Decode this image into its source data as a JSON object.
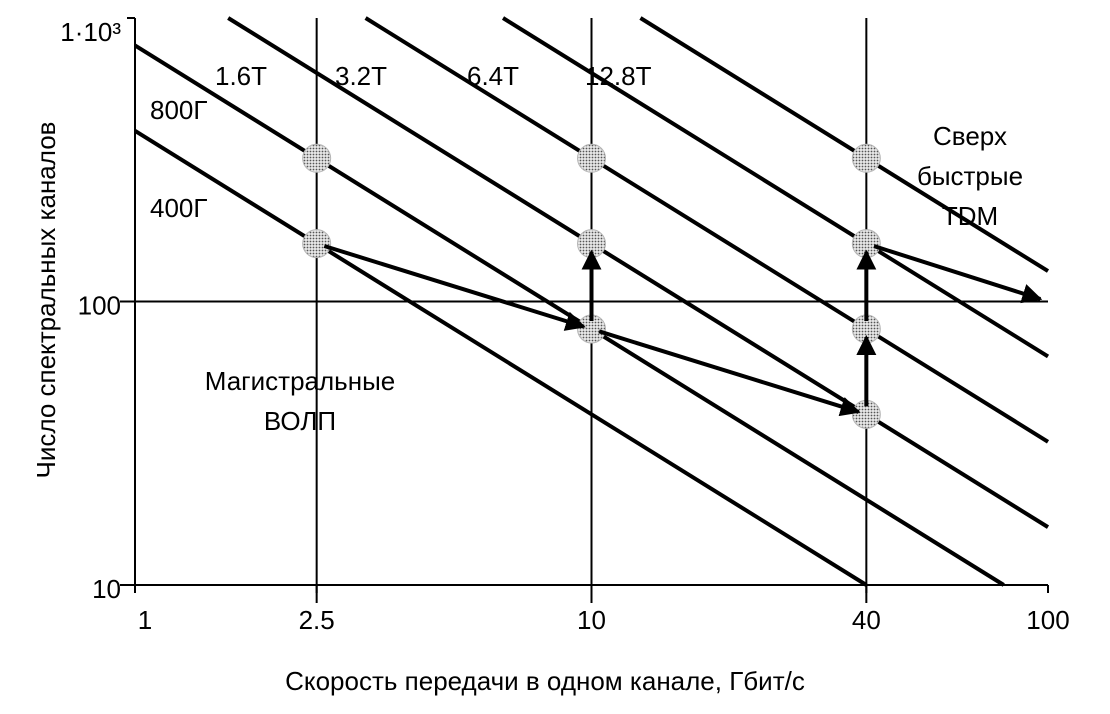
{
  "chart_data": {
    "type": "line",
    "log_x": true,
    "log_y": true,
    "x_label": "Скорость передачи в одном канале, Гбит/с",
    "y_label": "Число спектральных каналов",
    "xlim": [
      1,
      100
    ],
    "ylim": [
      10,
      1000
    ],
    "xticks": [
      1,
      2.5,
      10,
      40,
      100
    ],
    "yticks": [
      10,
      100,
      {
        "value": 1000,
        "label": "1·10³"
      }
    ],
    "x_grid": [
      2.5,
      10,
      40
    ],
    "y_grid": [
      100
    ],
    "color": "#000000",
    "series": [
      {
        "name": "400Г",
        "x": [
          1,
          40
        ],
        "values": [
          400,
          10
        ]
      },
      {
        "name": "800Г",
        "x": [
          1,
          80
        ],
        "values": [
          800,
          10
        ]
      },
      {
        "name": "1.6T",
        "x": [
          1.6,
          100
        ],
        "values": [
          1000,
          16
        ]
      },
      {
        "name": "3.2T",
        "x": [
          3.2,
          100
        ],
        "values": [
          1000,
          32
        ]
      },
      {
        "name": "6.4T",
        "x": [
          6.4,
          100
        ],
        "values": [
          1000,
          64
        ]
      },
      {
        "name": "12.8T",
        "x": [
          12.8,
          100
        ],
        "values": [
          1000,
          128
        ]
      }
    ],
    "points": {
      "color": "#b5b5b5",
      "x": [
        2.5,
        2.5,
        10,
        10,
        10,
        40,
        40,
        40,
        40
      ],
      "values": [
        320,
        160,
        320,
        160,
        80,
        320,
        160,
        80,
        40
      ]
    },
    "arrows": [
      {
        "x": [
          2.5,
          10
        ],
        "values": [
          160,
          80
        ]
      },
      {
        "x": [
          10,
          10
        ],
        "values": [
          80,
          160
        ]
      },
      {
        "x": [
          10,
          40
        ],
        "values": [
          80,
          40
        ]
      },
      {
        "x": [
          40,
          40
        ],
        "values": [
          40,
          80
        ]
      },
      {
        "x": [
          40,
          40
        ],
        "values": [
          80,
          160
        ]
      },
      {
        "x": [
          40,
          100
        ],
        "values": [
          160,
          100
        ]
      }
    ],
    "annotations": [
      {
        "lines": [
          "Магистральные",
          "ВОЛП"
        ]
      },
      {
        "lines": [
          "Сверх",
          "быстрые",
          "TDM"
        ]
      }
    ]
  }
}
